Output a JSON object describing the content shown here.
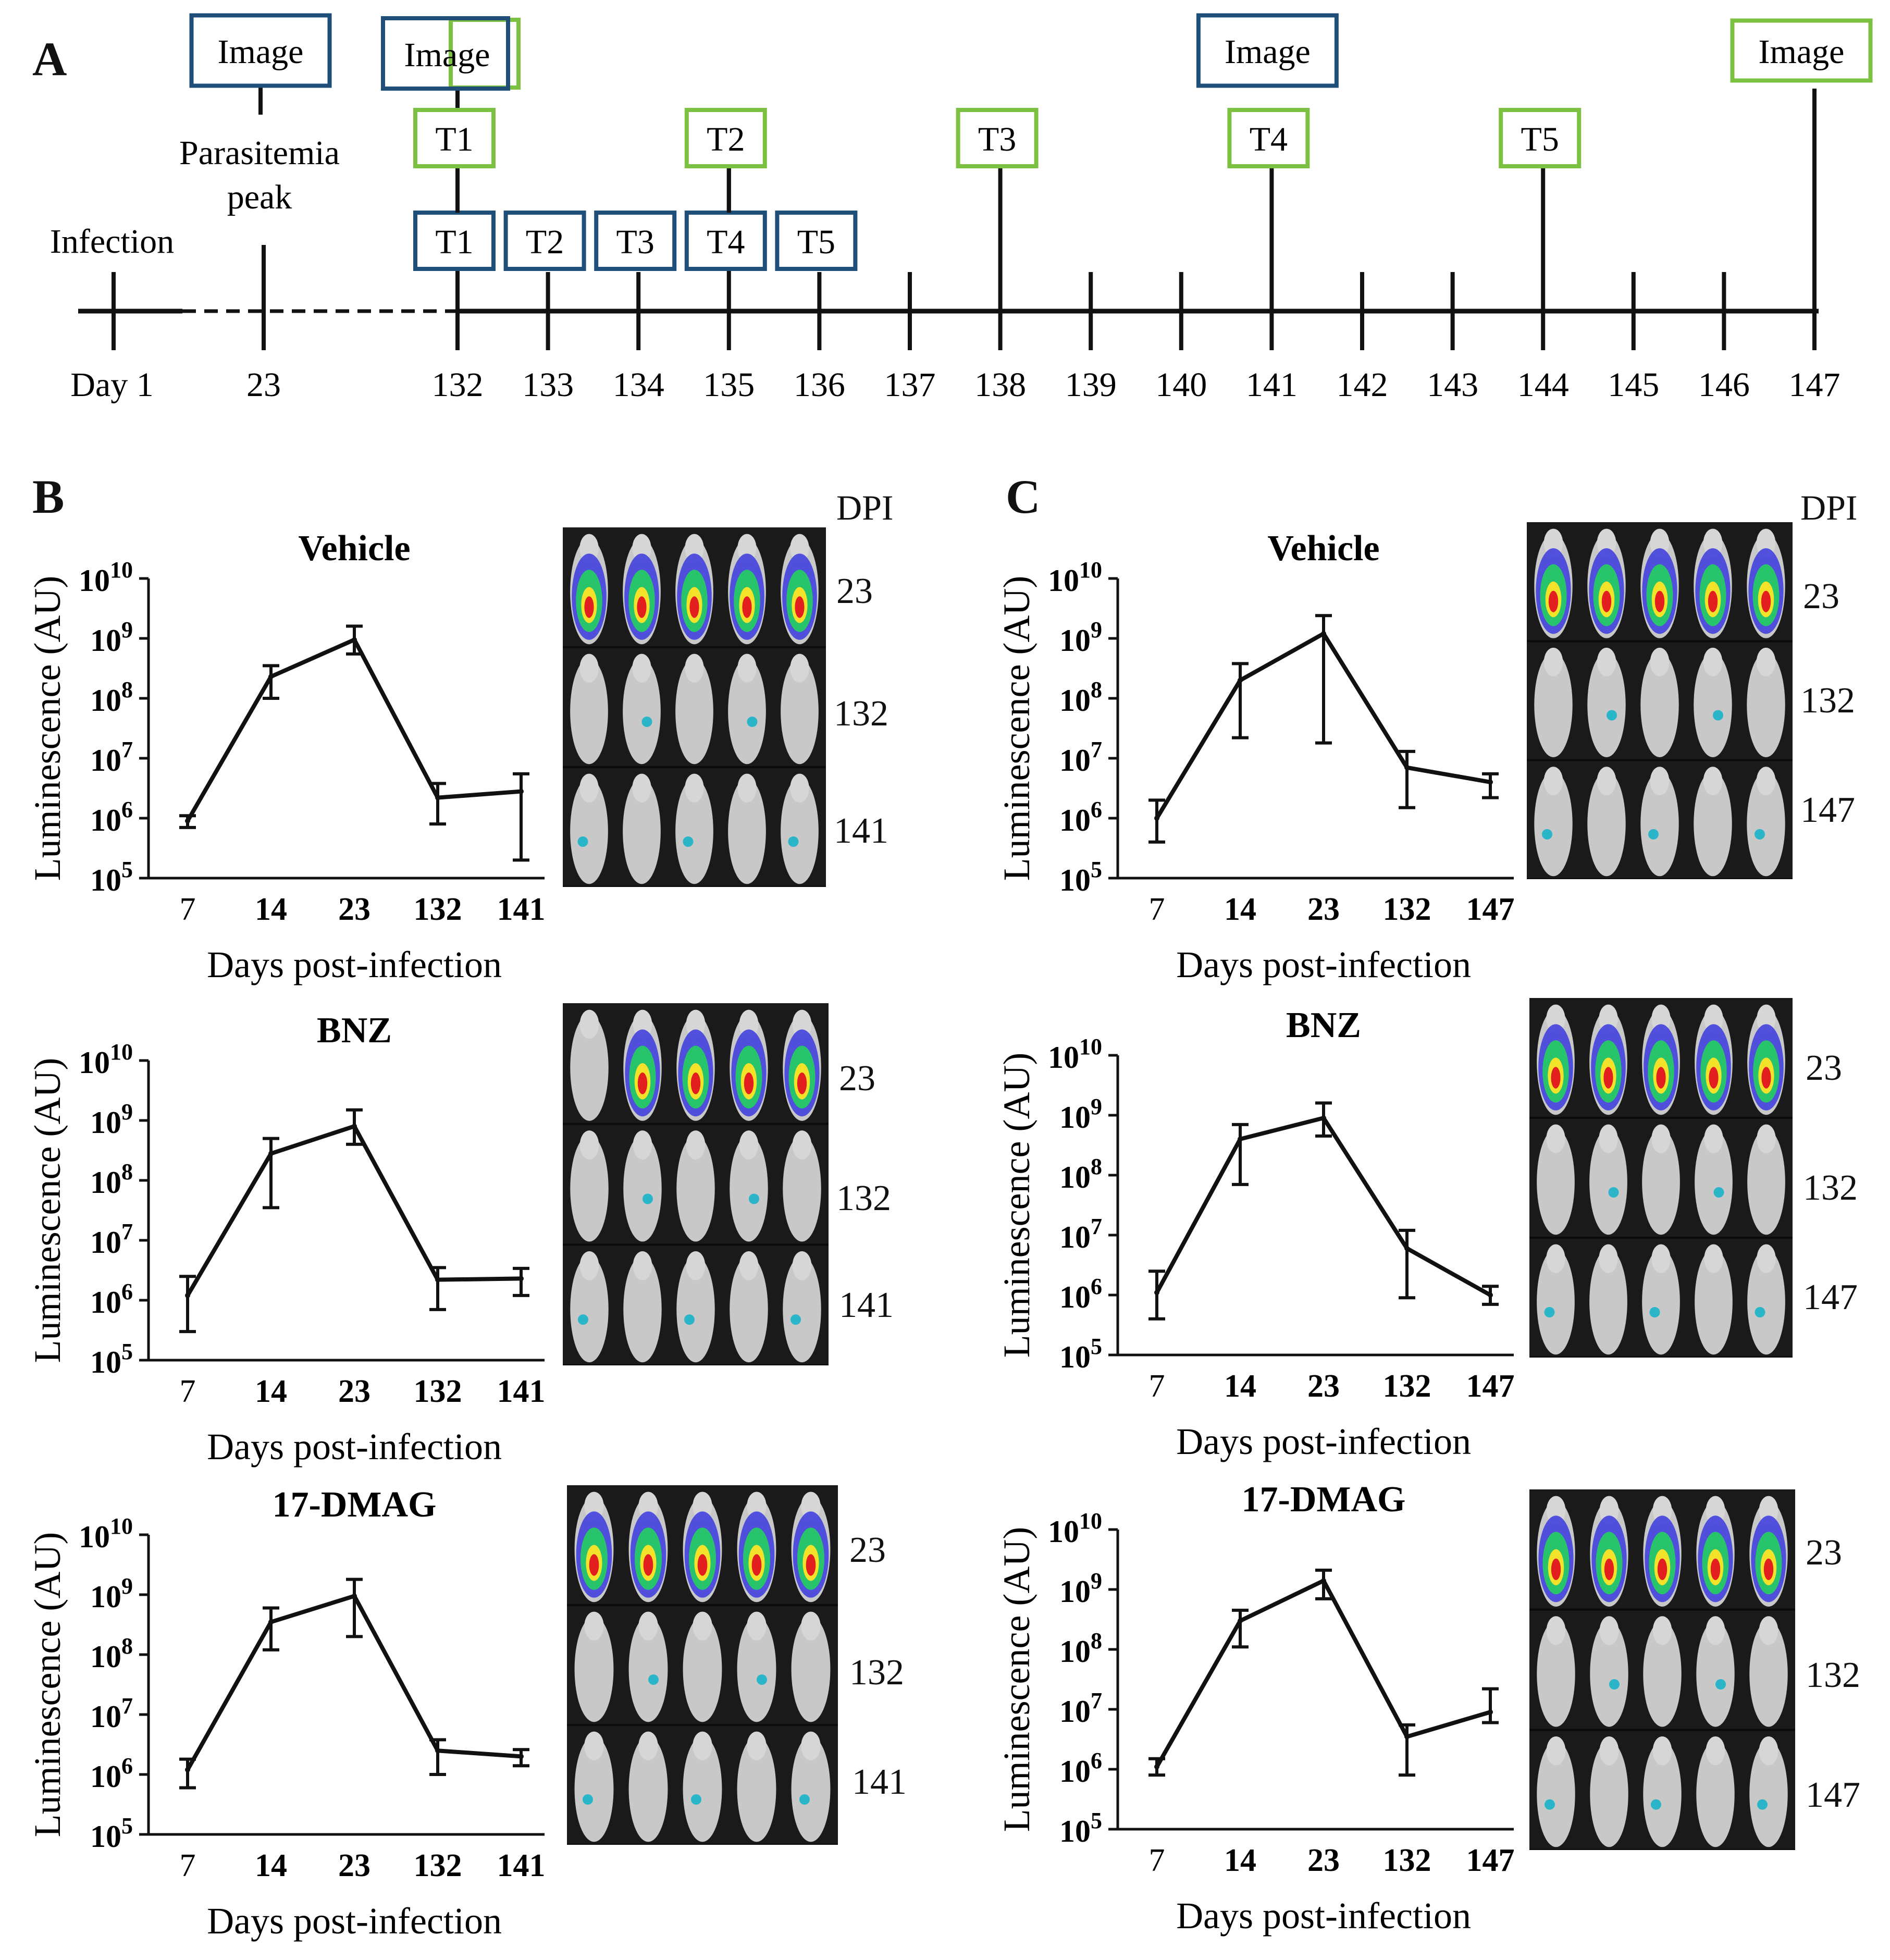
{
  "panels": {
    "A": "A",
    "B": "B",
    "C": "C"
  },
  "timeline": {
    "infection": "Infection",
    "peak": [
      "Parasitemia",
      "peak"
    ],
    "image_label": "Image",
    "days": [
      "Day  1",
      "23",
      "132",
      "133",
      "134",
      "135",
      "136",
      "137",
      "138",
      "139",
      "140",
      "141",
      "142",
      "143",
      "144",
      "145",
      "146",
      "147"
    ],
    "blue_treatments": [
      {
        "label": "T1",
        "day": "132"
      },
      {
        "label": "T2",
        "day": "133"
      },
      {
        "label": "T3",
        "day": "134"
      },
      {
        "label": "T4",
        "day": "135"
      },
      {
        "label": "T5",
        "day": "136"
      }
    ],
    "green_treatments": [
      {
        "label": "T1",
        "day": "132"
      },
      {
        "label": "T2",
        "day": "135"
      },
      {
        "label": "T3",
        "day": "138"
      },
      {
        "label": "T4",
        "day": "141"
      },
      {
        "label": "T5",
        "day": "144"
      }
    ],
    "blue_images": [
      "23",
      "132",
      "141"
    ],
    "green_images": [
      "132",
      "147"
    ],
    "colors": {
      "blue": "#1f4e79",
      "green": "#7cc142"
    }
  },
  "dpi_header": "DPI",
  "common": {
    "xlabel": "Days post-infection",
    "ylabel": "Luminescence (AU)",
    "yticks": [
      "10^5",
      "10^6",
      "10^7",
      "10^8",
      "10^9",
      "10^10"
    ]
  },
  "panel_B": {
    "dpi": [
      "23",
      "132",
      "141"
    ],
    "charts": [
      {
        "title": "Vehicle",
        "categories": [
          "7",
          "14",
          "23",
          "132",
          "141"
        ],
        "values": [
          900000.0,
          230000000.0,
          950000000.0,
          2200000.0,
          2800000.0
        ],
        "err_low": [
          700000.0,
          100000000.0,
          550000000.0,
          800000.0,
          200000.0
        ],
        "err_high": [
          1100000.0,
          350000000.0,
          1600000000.0,
          3800000.0,
          5500000.0
        ]
      },
      {
        "title": "BNZ",
        "categories": [
          "7",
          "14",
          "23",
          "132",
          "141"
        ],
        "values": [
          1200000.0,
          280000000.0,
          800000000.0,
          2200000.0,
          2300000.0
        ],
        "err_low": [
          300000.0,
          35000000.0,
          400000000.0,
          700000.0,
          1200000.0
        ],
        "err_high": [
          2500000.0,
          500000000.0,
          1500000000.0,
          3500000.0,
          3400000.0
        ]
      },
      {
        "title": "17-DMAG",
        "categories": [
          "7",
          "14",
          "23",
          "132",
          "141"
        ],
        "values": [
          1200000.0,
          350000000.0,
          950000000.0,
          2500000.0,
          2000000.0
        ],
        "err_low": [
          600000.0,
          120000000.0,
          200000000.0,
          1000000.0,
          1400000.0
        ],
        "err_high": [
          1800000.0,
          600000000.0,
          1800000000.0,
          3800000.0,
          2600000.0
        ]
      }
    ]
  },
  "panel_C": {
    "dpi": [
      "23",
      "132",
      "147"
    ],
    "charts": [
      {
        "title": "Vehicle",
        "categories": [
          "7",
          "14",
          "23",
          "132",
          "147"
        ],
        "values": [
          1000000.0,
          200000000.0,
          1200000000.0,
          7000000.0,
          4000000.0
        ],
        "err_low": [
          400000.0,
          22000000.0,
          18000000.0,
          1500000.0,
          2200000.0
        ],
        "err_high": [
          2000000.0,
          380000000.0,
          2400000000.0,
          13000000.0,
          5500000.0
        ]
      },
      {
        "title": "BNZ",
        "categories": [
          "7",
          "14",
          "23",
          "132",
          "147"
        ],
        "values": [
          1100000.0,
          400000000.0,
          900000000.0,
          6000000.0,
          1000000.0
        ],
        "err_low": [
          400000.0,
          70000000.0,
          450000000.0,
          900000.0,
          700000.0
        ],
        "err_high": [
          2500000.0,
          700000000.0,
          1600000000.0,
          12000000.0,
          1400000.0
        ]
      },
      {
        "title": "17-DMAG",
        "categories": [
          "7",
          "14",
          "23",
          "132",
          "147"
        ],
        "values": [
          1100000.0,
          300000000.0,
          1400000000.0,
          3500000.0,
          9000000.0
        ],
        "err_low": [
          800000.0,
          110000000.0,
          700000000.0,
          800000.0,
          6000000.0
        ],
        "err_high": [
          1500000.0,
          450000000.0,
          2100000000.0,
          5500000.0,
          22000000.0
        ]
      }
    ]
  },
  "chart_data": [
    {
      "type": "line",
      "title": "Vehicle",
      "group": "B",
      "categories": [
        "7",
        "14",
        "23",
        "132",
        "141"
      ],
      "series": [
        {
          "values": [
            900000.0,
            230000000.0,
            950000000.0,
            2200000.0,
            2800000.0
          ]
        }
      ],
      "xlabel": "Days post-infection",
      "ylabel": "Luminescence (AU)",
      "ylim": [
        100000.0,
        10000000000.0
      ],
      "yscale": "log"
    },
    {
      "type": "line",
      "title": "BNZ",
      "group": "B",
      "categories": [
        "7",
        "14",
        "23",
        "132",
        "141"
      ],
      "series": [
        {
          "values": [
            1200000.0,
            280000000.0,
            800000000.0,
            2200000.0,
            2300000.0
          ]
        }
      ],
      "xlabel": "Days post-infection",
      "ylabel": "Luminescence (AU)",
      "ylim": [
        100000.0,
        10000000000.0
      ],
      "yscale": "log"
    },
    {
      "type": "line",
      "title": "17-DMAG",
      "group": "B",
      "categories": [
        "7",
        "14",
        "23",
        "132",
        "141"
      ],
      "series": [
        {
          "values": [
            1200000.0,
            350000000.0,
            950000000.0,
            2500000.0,
            2000000.0
          ]
        }
      ],
      "xlabel": "Days post-infection",
      "ylabel": "Luminescence (AU)",
      "ylim": [
        100000.0,
        10000000000.0
      ],
      "yscale": "log"
    },
    {
      "type": "line",
      "title": "Vehicle",
      "group": "C",
      "categories": [
        "7",
        "14",
        "23",
        "132",
        "147"
      ],
      "series": [
        {
          "values": [
            1000000.0,
            200000000.0,
            1200000000.0,
            7000000.0,
            4000000.0
          ]
        }
      ],
      "xlabel": "Days post-infection",
      "ylabel": "Luminescence (AU)",
      "ylim": [
        100000.0,
        10000000000.0
      ],
      "yscale": "log"
    },
    {
      "type": "line",
      "title": "BNZ",
      "group": "C",
      "categories": [
        "7",
        "14",
        "23",
        "132",
        "147"
      ],
      "series": [
        {
          "values": [
            1100000.0,
            400000000.0,
            900000000.0,
            6000000.0,
            1000000.0
          ]
        }
      ],
      "xlabel": "Days post-infection",
      "ylabel": "Luminescence (AU)",
      "ylim": [
        100000.0,
        10000000000.0
      ],
      "yscale": "log"
    },
    {
      "type": "line",
      "title": "17-DMAG",
      "group": "C",
      "categories": [
        "7",
        "14",
        "23",
        "132",
        "147"
      ],
      "series": [
        {
          "values": [
            1100000.0,
            300000000.0,
            1400000000.0,
            3500000.0,
            9000000.0
          ]
        }
      ],
      "xlabel": "Days post-infection",
      "ylabel": "Luminescence (AU)",
      "ylim": [
        100000.0,
        10000000000.0
      ],
      "yscale": "log"
    }
  ]
}
